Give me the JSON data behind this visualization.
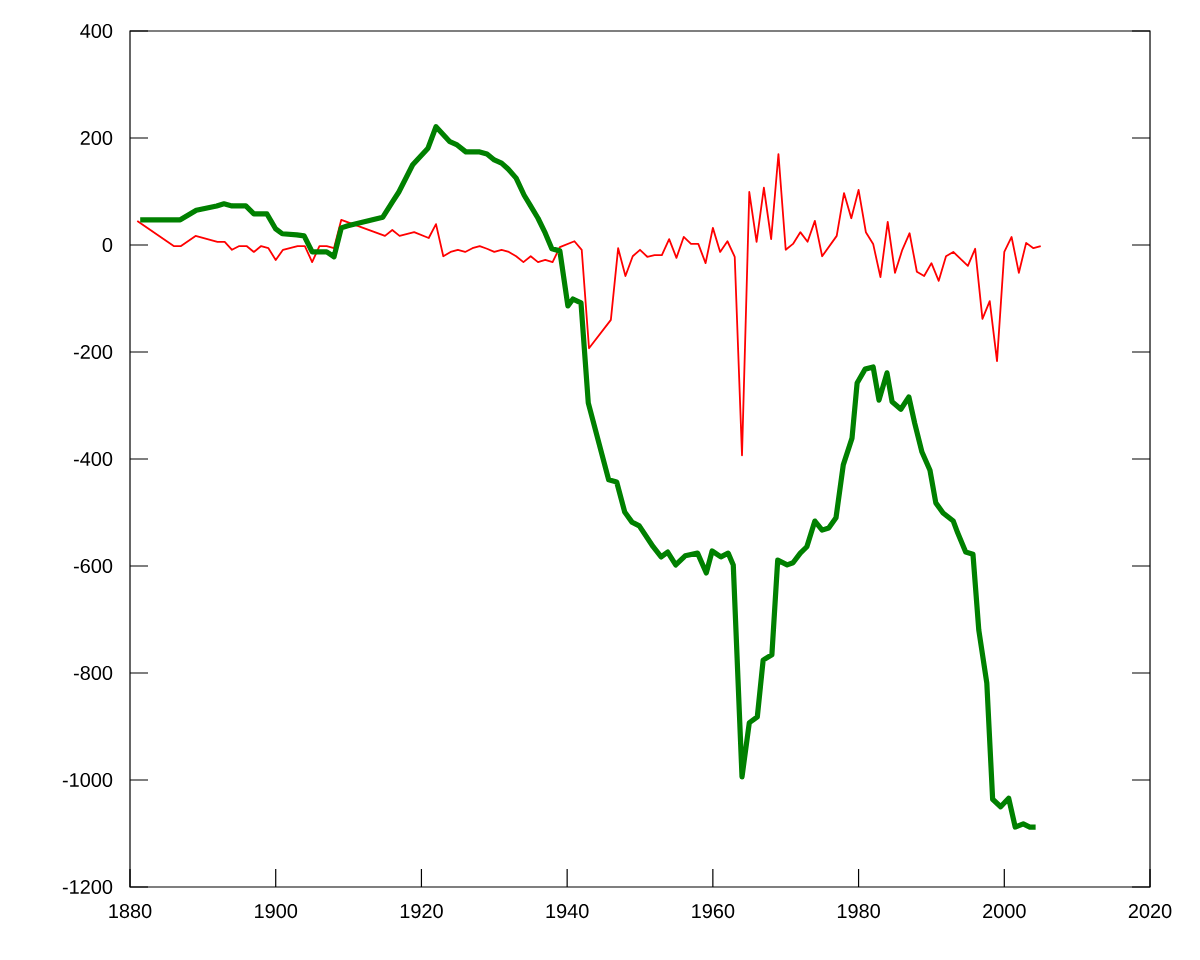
{
  "chart_data": {
    "type": "line",
    "xlim": [
      1880,
      2020
    ],
    "ylim": [
      -1200,
      400
    ],
    "xticks": [
      1880,
      1900,
      1920,
      1940,
      1960,
      1980,
      2000,
      2020
    ],
    "yticks": [
      -1200,
      -1000,
      -800,
      -600,
      -400,
      -200,
      0,
      200,
      400
    ],
    "grid": false,
    "marker": "none",
    "line_style": "solid",
    "series": [
      {
        "color": "#ff0000",
        "x": [
          1881,
          1886,
          1887,
          1889,
          1892,
          1893,
          1894,
          1895,
          1896,
          1897,
          1898,
          1899,
          1900,
          1901,
          1903,
          1904,
          1905,
          1906,
          1907,
          1908,
          1909,
          1915,
          1916,
          1917,
          1919,
          1921,
          1922,
          1923,
          1924,
          1925,
          1926,
          1927,
          1928,
          1929,
          1930,
          1931,
          1932,
          1933,
          1934,
          1935,
          1936,
          1937,
          1938,
          1939,
          1941,
          1942,
          1943,
          1946,
          1947,
          1948,
          1949,
          1950,
          1951,
          1952,
          1953,
          1954,
          1955,
          1956,
          1957,
          1958,
          1959,
          1960,
          1961,
          1962,
          1963,
          1964,
          1965,
          1966,
          1967,
          1968,
          1969,
          1970,
          1971,
          1972,
          1973,
          1974,
          1975,
          1977,
          1978,
          1979,
          1980,
          1981,
          1982,
          1983,
          1984,
          1985,
          1986,
          1987,
          1988,
          1989,
          1990,
          1991,
          1992,
          1993,
          1995,
          1996,
          1997,
          1998,
          1999,
          2000,
          2001,
          2002,
          2003,
          2004,
          2005
        ],
        "values": [
          45,
          -2,
          -2,
          17,
          6,
          6,
          -9,
          -2,
          -2,
          -13,
          -2,
          -6,
          -28,
          -9,
          -2,
          -2,
          -32,
          -2,
          -2,
          -6,
          47,
          17,
          28,
          17,
          24,
          13,
          39,
          -21,
          -13,
          -9,
          -13,
          -6,
          -2,
          -7,
          -13,
          -9,
          -13,
          -21,
          -32,
          -21,
          -32,
          -28,
          -32,
          -4,
          7,
          -9,
          -193,
          -140,
          -6,
          -58,
          -21,
          -9,
          -22,
          -19,
          -19,
          11,
          -24,
          15,
          2,
          2,
          -34,
          32,
          -13,
          7,
          -22,
          -393,
          99,
          6,
          107,
          11,
          170,
          -9,
          2,
          24,
          6,
          45,
          -21,
          17,
          97,
          50,
          103,
          24,
          2,
          -60,
          43,
          -52,
          -9,
          22,
          -50,
          -58,
          -34,
          -67,
          -21,
          -13,
          -39,
          -7,
          -138,
          -105,
          -217,
          -13,
          15,
          -52,
          4,
          -6,
          -2
        ]
      },
      {
        "color": "#008000",
        "x": [
          1881.4,
          1886.9,
          1889.1,
          1891.9,
          1892.9,
          1894,
          1895.9,
          1897,
          1898.8,
          1900,
          1900.9,
          1902.9,
          1903.9,
          1905,
          1907,
          1908,
          1909,
          1909.9,
          1914.7,
          1916,
          1916.9,
          1918.8,
          1920.9,
          1922,
          1923.9,
          1924.9,
          1926.1,
          1928,
          1929,
          1930,
          1931,
          1931.9,
          1933,
          1934.1,
          1934.9,
          1936,
          1937,
          1937.9,
          1939,
          1940.1,
          1940.8,
          1941.9,
          1942.9,
          1945.7,
          1946.8,
          1947.9,
          1948.9,
          1949.9,
          1951.8,
          1952.9,
          1953.8,
          1954.9,
          1956.2,
          1957.9,
          1959.1,
          1959.9,
          1961.1,
          1962.1,
          1962.8,
          1964,
          1965,
          1966.1,
          1966.9,
          1968.1,
          1968.9,
          1970.2,
          1971,
          1972,
          1972.9,
          1974,
          1975,
          1975.9,
          1976.9,
          1977.9,
          1979.1,
          1979.8,
          1980.9,
          1982,
          1982.8,
          1983.9,
          1984.6,
          1985.8,
          1986.9,
          1987.7,
          1988.7,
          1989.8,
          1990.6,
          1991.6,
          1993,
          1993.6,
          1994.7,
          1995.7,
          1996.5,
          1997.6,
          1998.4,
          1999.5,
          2000.6,
          2001.5,
          2002.6,
          2003.5,
          2004.3
        ],
        "values": [
          47,
          47,
          65,
          73,
          77,
          73,
          73,
          58,
          58,
          30,
          21,
          19,
          17,
          -13,
          -13,
          -22,
          32,
          36,
          52,
          80,
          99,
          150,
          181,
          221,
          193,
          187,
          174,
          174,
          170,
          159,
          153,
          142,
          125,
          93,
          75,
          50,
          22,
          -7,
          -11,
          -114,
          -101,
          -108,
          -295,
          -439,
          -443,
          -499,
          -518,
          -525,
          -564,
          -583,
          -574,
          -598,
          -581,
          -576,
          -613,
          -572,
          -583,
          -576,
          -598,
          -994,
          -893,
          -882,
          -776,
          -766,
          -589,
          -598,
          -594,
          -576,
          -564,
          -516,
          -533,
          -529,
          -510,
          -411,
          -361,
          -258,
          -232,
          -228,
          -290,
          -239,
          -293,
          -307,
          -284,
          -333,
          -387,
          -421,
          -482,
          -501,
          -516,
          -538,
          -574,
          -578,
          -720,
          -819,
          -1036,
          -1050,
          -1034,
          -1088,
          -1082,
          -1088,
          -1088
        ]
      }
    ]
  }
}
